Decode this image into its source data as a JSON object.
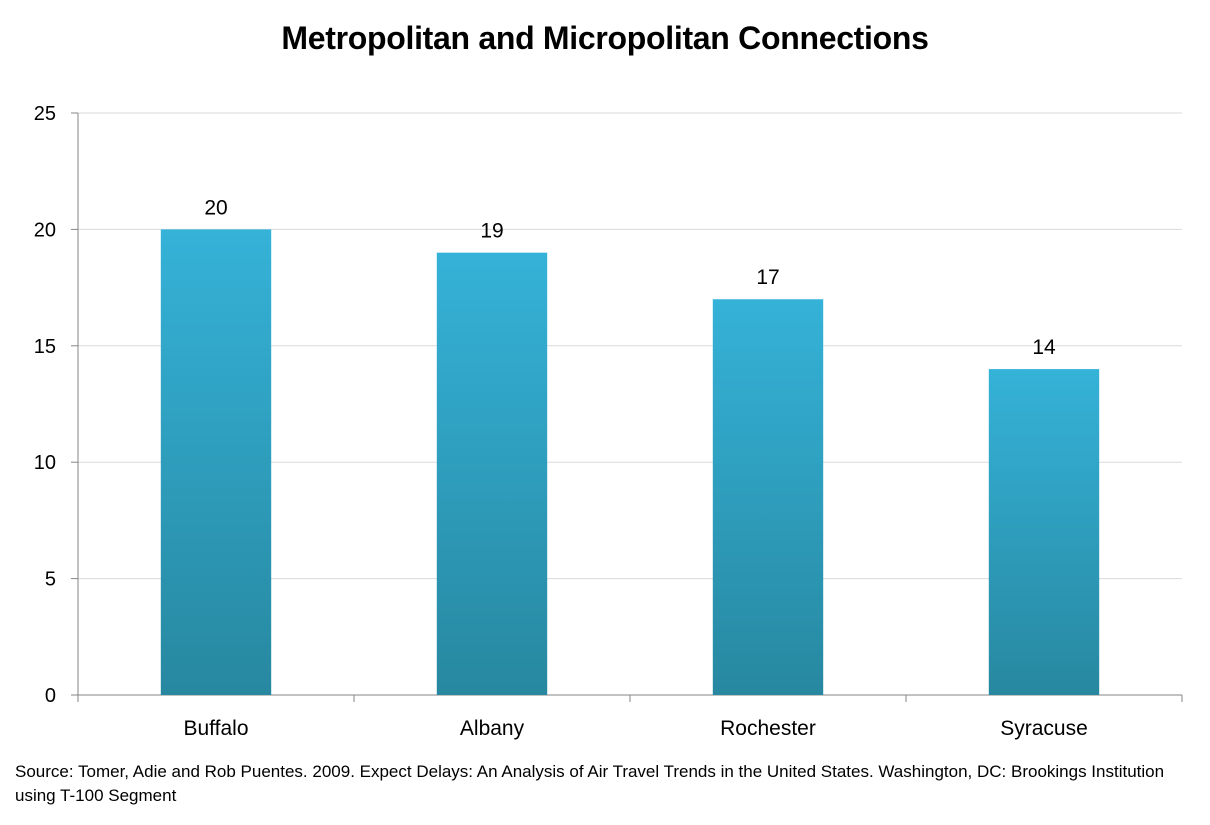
{
  "chart_data": {
    "type": "bar",
    "title": "Metropolitan and Micropolitan Connections",
    "categories": [
      "Buffalo",
      "Albany",
      "Rochester",
      "Syracuse"
    ],
    "values": [
      20,
      19,
      17,
      14
    ],
    "data_labels": [
      "20",
      "19",
      "17",
      "14"
    ],
    "xlabel": "",
    "ylabel": "",
    "ylim": [
      0,
      25
    ],
    "yticks": [
      "0",
      "5",
      "10",
      "15",
      "20",
      "25"
    ],
    "grid": true,
    "legend": "none",
    "bar_color_top": "#35b2d8",
    "bar_color_bottom": "#2788a0",
    "gridline_color": "#d9d9d9",
    "axis_color": "#868686"
  },
  "source_note": "Source: Tomer, Adie and Rob Puentes. 2009. Expect Delays: An Analysis of Air Travel Trends in the United States. Washington, DC: Brookings Institution using T-100 Segment"
}
